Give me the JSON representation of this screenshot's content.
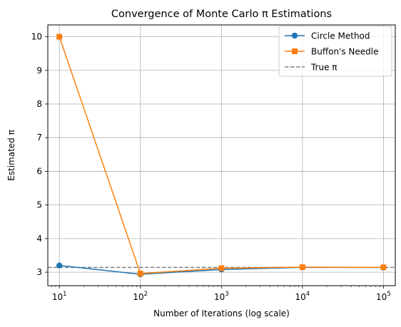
{
  "chart_data": {
    "type": "line",
    "title": "Convergence of Monte Carlo π Estimations",
    "xlabel": "Number of Iterations (log scale)",
    "ylabel": "Estimated π",
    "x_scale": "log",
    "x": [
      10,
      100,
      1000,
      10000,
      100000
    ],
    "xlim": [
      7.2,
      140000
    ],
    "ylim": [
      2.6,
      10.35
    ],
    "x_ticks": [
      {
        "value": 10,
        "base": "10",
        "exp": "1"
      },
      {
        "value": 100,
        "base": "10",
        "exp": "2"
      },
      {
        "value": 1000,
        "base": "10",
        "exp": "3"
      },
      {
        "value": 10000,
        "base": "10",
        "exp": "4"
      },
      {
        "value": 100000,
        "base": "10",
        "exp": "5"
      }
    ],
    "y_ticks": [
      "3",
      "4",
      "5",
      "6",
      "7",
      "8",
      "9",
      "10"
    ],
    "grid": true,
    "legend_position": "top-right",
    "series": [
      {
        "name": "Circle Method",
        "values": [
          3.2,
          2.94,
          3.08,
          3.144,
          3.141
        ],
        "color": "#1f77b4",
        "marker": "circle"
      },
      {
        "name": "Buffon's Needle",
        "values": [
          10.0,
          2.96,
          3.12,
          3.15,
          3.145
        ],
        "color": "#ff7f0e",
        "marker": "square"
      }
    ],
    "reference_lines": [
      {
        "name": "True π",
        "y": 3.14159,
        "color": "#808080",
        "style": "dashed"
      }
    ]
  }
}
